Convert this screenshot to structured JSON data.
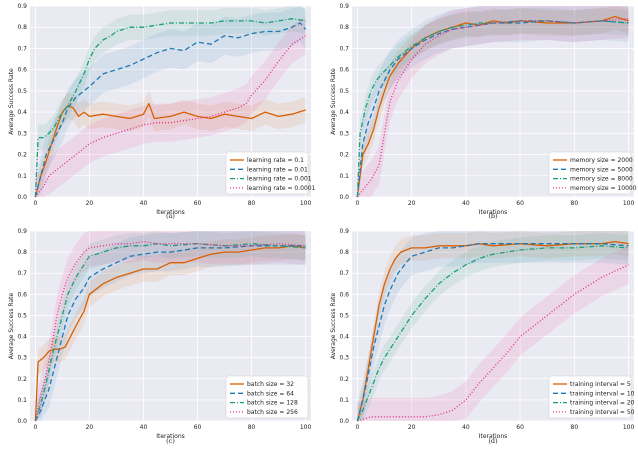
{
  "colors": {
    "orange": "#d95f02",
    "blue": "#1f78b4",
    "green": "#1b9e77",
    "pink": "#e7298a",
    "panel_bg": "#eaeaf2",
    "grid": "#ffffff"
  },
  "chart_data": [
    {
      "type": "line",
      "caption": "(a)",
      "xlabel": "Iterations",
      "ylabel": "Average Success Rate",
      "xlim": [
        -2,
        102
      ],
      "ylim": [
        0,
        0.9
      ],
      "legend_position": "lower-right",
      "xticks": [
        "0",
        "20",
        "40",
        "60",
        "80",
        "100"
      ],
      "yticks": [
        "0.0",
        "0.1",
        "0.2",
        "0.3",
        "0.4",
        "0.5",
        "0.6",
        "0.7",
        "0.8",
        "0.9"
      ],
      "series": [
        {
          "name": "learning rate = 0.1",
          "color": "#d95f02",
          "dash": "solid",
          "x": [
            0,
            2,
            4,
            6,
            8,
            10,
            12,
            14,
            16,
            18,
            20,
            25,
            30,
            35,
            40,
            42,
            44,
            50,
            55,
            60,
            65,
            70,
            75,
            80,
            85,
            90,
            95,
            100
          ],
          "y": [
            0.0,
            0.1,
            0.17,
            0.25,
            0.33,
            0.4,
            0.43,
            0.42,
            0.38,
            0.4,
            0.38,
            0.39,
            0.38,
            0.37,
            0.39,
            0.44,
            0.37,
            0.38,
            0.4,
            0.38,
            0.37,
            0.39,
            0.38,
            0.37,
            0.4,
            0.38,
            0.39,
            0.41
          ]
        },
        {
          "name": "learning rate = 0.01",
          "color": "#1f78b4",
          "dash": "dashed",
          "x": [
            0,
            2,
            4,
            6,
            8,
            10,
            12,
            15,
            20,
            25,
            30,
            35,
            40,
            45,
            50,
            55,
            60,
            65,
            70,
            75,
            80,
            85,
            90,
            95,
            98,
            100
          ],
          "y": [
            0.0,
            0.1,
            0.2,
            0.25,
            0.3,
            0.35,
            0.42,
            0.47,
            0.52,
            0.58,
            0.6,
            0.62,
            0.65,
            0.68,
            0.7,
            0.69,
            0.73,
            0.72,
            0.76,
            0.75,
            0.77,
            0.78,
            0.78,
            0.8,
            0.82,
            0.79
          ]
        },
        {
          "name": "learning rate = 0.001",
          "color": "#1b9e77",
          "dash": "dashdot",
          "x": [
            0,
            1,
            3,
            5,
            7,
            9,
            12,
            15,
            18,
            20,
            22,
            25,
            28,
            30,
            35,
            40,
            45,
            50,
            55,
            60,
            65,
            70,
            75,
            80,
            85,
            90,
            95,
            100
          ],
          "y": [
            0.0,
            0.28,
            0.28,
            0.3,
            0.33,
            0.38,
            0.43,
            0.5,
            0.58,
            0.65,
            0.7,
            0.74,
            0.76,
            0.78,
            0.8,
            0.8,
            0.81,
            0.82,
            0.82,
            0.82,
            0.82,
            0.83,
            0.83,
            0.83,
            0.82,
            0.83,
            0.84,
            0.83
          ]
        },
        {
          "name": "learning rate = 0.0001",
          "color": "#e7298a",
          "dash": "dotted",
          "x": [
            0,
            3,
            5,
            10,
            15,
            20,
            25,
            30,
            35,
            40,
            45,
            50,
            55,
            60,
            65,
            70,
            75,
            78,
            80,
            85,
            90,
            95,
            100
          ],
          "y": [
            0.0,
            0.05,
            0.1,
            0.15,
            0.2,
            0.25,
            0.28,
            0.3,
            0.32,
            0.34,
            0.35,
            0.35,
            0.36,
            0.37,
            0.38,
            0.4,
            0.42,
            0.44,
            0.48,
            0.55,
            0.64,
            0.72,
            0.76
          ]
        }
      ]
    },
    {
      "type": "line",
      "caption": "(b)",
      "xlabel": "Iterations",
      "ylabel": "Average Success Rate",
      "xlim": [
        -2,
        102
      ],
      "ylim": [
        0,
        0.9
      ],
      "legend_position": "lower-right",
      "xticks": [
        "0",
        "20",
        "40",
        "60",
        "80",
        "100"
      ],
      "yticks": [
        "0.0",
        "0.1",
        "0.2",
        "0.3",
        "0.4",
        "0.5",
        "0.6",
        "0.7",
        "0.8",
        "0.9"
      ],
      "series": [
        {
          "name": "memory size = 2000",
          "color": "#d95f02",
          "dash": "solid",
          "x": [
            0,
            2,
            4,
            6,
            8,
            10,
            12,
            15,
            20,
            25,
            30,
            35,
            40,
            45,
            50,
            55,
            60,
            70,
            80,
            90,
            95,
            100
          ],
          "y": [
            0.0,
            0.2,
            0.25,
            0.32,
            0.42,
            0.5,
            0.57,
            0.63,
            0.7,
            0.75,
            0.78,
            0.8,
            0.82,
            0.81,
            0.83,
            0.82,
            0.83,
            0.82,
            0.82,
            0.83,
            0.85,
            0.83
          ]
        },
        {
          "name": "memory size = 5000",
          "color": "#1f78b4",
          "dash": "dashed",
          "x": [
            0,
            2,
            4,
            6,
            8,
            10,
            12,
            15,
            20,
            25,
            30,
            35,
            40,
            45,
            50,
            60,
            70,
            80,
            90,
            100
          ],
          "y": [
            0.0,
            0.25,
            0.35,
            0.42,
            0.5,
            0.55,
            0.6,
            0.65,
            0.7,
            0.74,
            0.77,
            0.79,
            0.8,
            0.81,
            0.82,
            0.82,
            0.83,
            0.82,
            0.83,
            0.82
          ]
        },
        {
          "name": "memory size = 8000",
          "color": "#1b9e77",
          "dash": "dashdot",
          "x": [
            0,
            1,
            3,
            5,
            7,
            9,
            12,
            15,
            20,
            25,
            30,
            35,
            40,
            45,
            50,
            60,
            70,
            80,
            90,
            100
          ],
          "y": [
            0.0,
            0.3,
            0.42,
            0.5,
            0.55,
            0.58,
            0.62,
            0.66,
            0.71,
            0.75,
            0.78,
            0.8,
            0.81,
            0.82,
            0.82,
            0.83,
            0.83,
            0.82,
            0.83,
            0.82
          ]
        },
        {
          "name": "memory size = 10000",
          "color": "#e7298a",
          "dash": "dotted",
          "x": [
            0,
            3,
            5,
            8,
            10,
            12,
            15,
            20,
            25,
            30,
            35,
            40,
            45,
            50,
            60,
            70,
            80,
            90,
            100
          ],
          "y": [
            0.0,
            0.05,
            0.08,
            0.15,
            0.3,
            0.45,
            0.55,
            0.65,
            0.72,
            0.76,
            0.79,
            0.8,
            0.81,
            0.82,
            0.83,
            0.83,
            0.82,
            0.83,
            0.84
          ]
        }
      ]
    },
    {
      "type": "line",
      "caption": "(c)",
      "xlabel": "Iterations",
      "ylabel": "Average Success Rate",
      "xlim": [
        -2,
        102
      ],
      "ylim": [
        0,
        0.9
      ],
      "legend_position": "lower-right",
      "xticks": [
        "0",
        "20",
        "40",
        "60",
        "80",
        "100"
      ],
      "yticks": [
        "0.0",
        "0.1",
        "0.2",
        "0.3",
        "0.4",
        "0.5",
        "0.6",
        "0.7",
        "0.8",
        "0.9"
      ],
      "series": [
        {
          "name": "batch size = 32",
          "color": "#d95f02",
          "dash": "solid",
          "x": [
            0,
            1,
            3,
            5,
            7,
            9,
            11,
            13,
            15,
            18,
            20,
            25,
            30,
            35,
            40,
            45,
            50,
            55,
            60,
            65,
            70,
            75,
            80,
            85,
            90,
            95,
            100
          ],
          "y": [
            0.0,
            0.28,
            0.3,
            0.33,
            0.34,
            0.34,
            0.35,
            0.4,
            0.45,
            0.52,
            0.6,
            0.65,
            0.68,
            0.7,
            0.72,
            0.72,
            0.75,
            0.75,
            0.77,
            0.79,
            0.8,
            0.8,
            0.81,
            0.82,
            0.82,
            0.83,
            0.82
          ]
        },
        {
          "name": "batch size = 64",
          "color": "#1f78b4",
          "dash": "dashed",
          "x": [
            0,
            2,
            5,
            8,
            10,
            12,
            15,
            18,
            20,
            25,
            30,
            35,
            40,
            45,
            50,
            60,
            70,
            80,
            90,
            100
          ],
          "y": [
            0.0,
            0.05,
            0.15,
            0.3,
            0.4,
            0.5,
            0.58,
            0.63,
            0.68,
            0.72,
            0.75,
            0.78,
            0.79,
            0.8,
            0.8,
            0.82,
            0.82,
            0.83,
            0.83,
            0.83
          ]
        },
        {
          "name": "batch size = 128",
          "color": "#1b9e77",
          "dash": "dashdot",
          "x": [
            0,
            2,
            4,
            6,
            8,
            10,
            12,
            15,
            18,
            20,
            25,
            30,
            35,
            40,
            45,
            50,
            60,
            70,
            80,
            90,
            100
          ],
          "y": [
            0.0,
            0.08,
            0.18,
            0.3,
            0.4,
            0.5,
            0.6,
            0.68,
            0.74,
            0.78,
            0.8,
            0.82,
            0.83,
            0.83,
            0.84,
            0.83,
            0.84,
            0.83,
            0.84,
            0.83,
            0.82
          ]
        },
        {
          "name": "batch size = 256",
          "color": "#e7298a",
          "dash": "dotted",
          "x": [
            0,
            2,
            4,
            6,
            8,
            10,
            12,
            15,
            18,
            20,
            25,
            30,
            35,
            40,
            45,
            50,
            60,
            70,
            80,
            90,
            100
          ],
          "y": [
            0.0,
            0.12,
            0.22,
            0.35,
            0.5,
            0.6,
            0.68,
            0.75,
            0.8,
            0.82,
            0.83,
            0.84,
            0.84,
            0.85,
            0.84,
            0.84,
            0.84,
            0.83,
            0.83,
            0.84,
            0.83
          ]
        }
      ]
    },
    {
      "type": "line",
      "caption": "(d)",
      "xlabel": "Iterations",
      "ylabel": "Average Success Rate",
      "xlim": [
        -2,
        102
      ],
      "ylim": [
        0,
        0.9
      ],
      "legend_position": "lower-right",
      "xticks": [
        "0",
        "20",
        "40",
        "60",
        "80",
        "100"
      ],
      "yticks": [
        "0.0",
        "0.1",
        "0.2",
        "0.3",
        "0.4",
        "0.5",
        "0.6",
        "0.7",
        "0.8",
        "0.9"
      ],
      "series": [
        {
          "name": "training interval = 5",
          "color": "#d95f02",
          "dash": "solid",
          "x": [
            0,
            2,
            4,
            6,
            8,
            10,
            12,
            14,
            16,
            18,
            20,
            25,
            30,
            35,
            40,
            45,
            50,
            60,
            70,
            80,
            90,
            95,
            100
          ],
          "y": [
            0.0,
            0.1,
            0.25,
            0.4,
            0.55,
            0.65,
            0.72,
            0.77,
            0.8,
            0.81,
            0.82,
            0.82,
            0.83,
            0.83,
            0.83,
            0.84,
            0.83,
            0.84,
            0.83,
            0.84,
            0.84,
            0.85,
            0.84
          ]
        },
        {
          "name": "training interval = 10",
          "color": "#1f78b4",
          "dash": "dashed",
          "x": [
            0,
            2,
            4,
            6,
            8,
            10,
            12,
            15,
            18,
            20,
            25,
            30,
            35,
            40,
            45,
            50,
            60,
            70,
            80,
            90,
            100
          ],
          "y": [
            0.0,
            0.1,
            0.22,
            0.35,
            0.45,
            0.55,
            0.62,
            0.7,
            0.75,
            0.78,
            0.8,
            0.82,
            0.82,
            0.83,
            0.84,
            0.84,
            0.84,
            0.84,
            0.84,
            0.84,
            0.83
          ]
        },
        {
          "name": "training interval = 20",
          "color": "#1b9e77",
          "dash": "dashdot",
          "x": [
            0,
            2,
            5,
            8,
            10,
            15,
            20,
            25,
            30,
            35,
            40,
            45,
            50,
            55,
            60,
            70,
            80,
            90,
            100
          ],
          "y": [
            0.0,
            0.05,
            0.15,
            0.25,
            0.3,
            0.4,
            0.5,
            0.58,
            0.65,
            0.7,
            0.74,
            0.77,
            0.79,
            0.8,
            0.81,
            0.82,
            0.82,
            0.83,
            0.82
          ]
        },
        {
          "name": "training interval = 50",
          "color": "#e7298a",
          "dash": "dotted",
          "x": [
            0,
            5,
            10,
            15,
            20,
            25,
            30,
            35,
            40,
            45,
            50,
            55,
            60,
            65,
            70,
            75,
            80,
            85,
            90,
            95,
            100
          ],
          "y": [
            0.0,
            0.02,
            0.02,
            0.02,
            0.02,
            0.02,
            0.03,
            0.05,
            0.1,
            0.18,
            0.25,
            0.32,
            0.4,
            0.45,
            0.5,
            0.55,
            0.6,
            0.64,
            0.68,
            0.71,
            0.74
          ]
        }
      ]
    }
  ]
}
